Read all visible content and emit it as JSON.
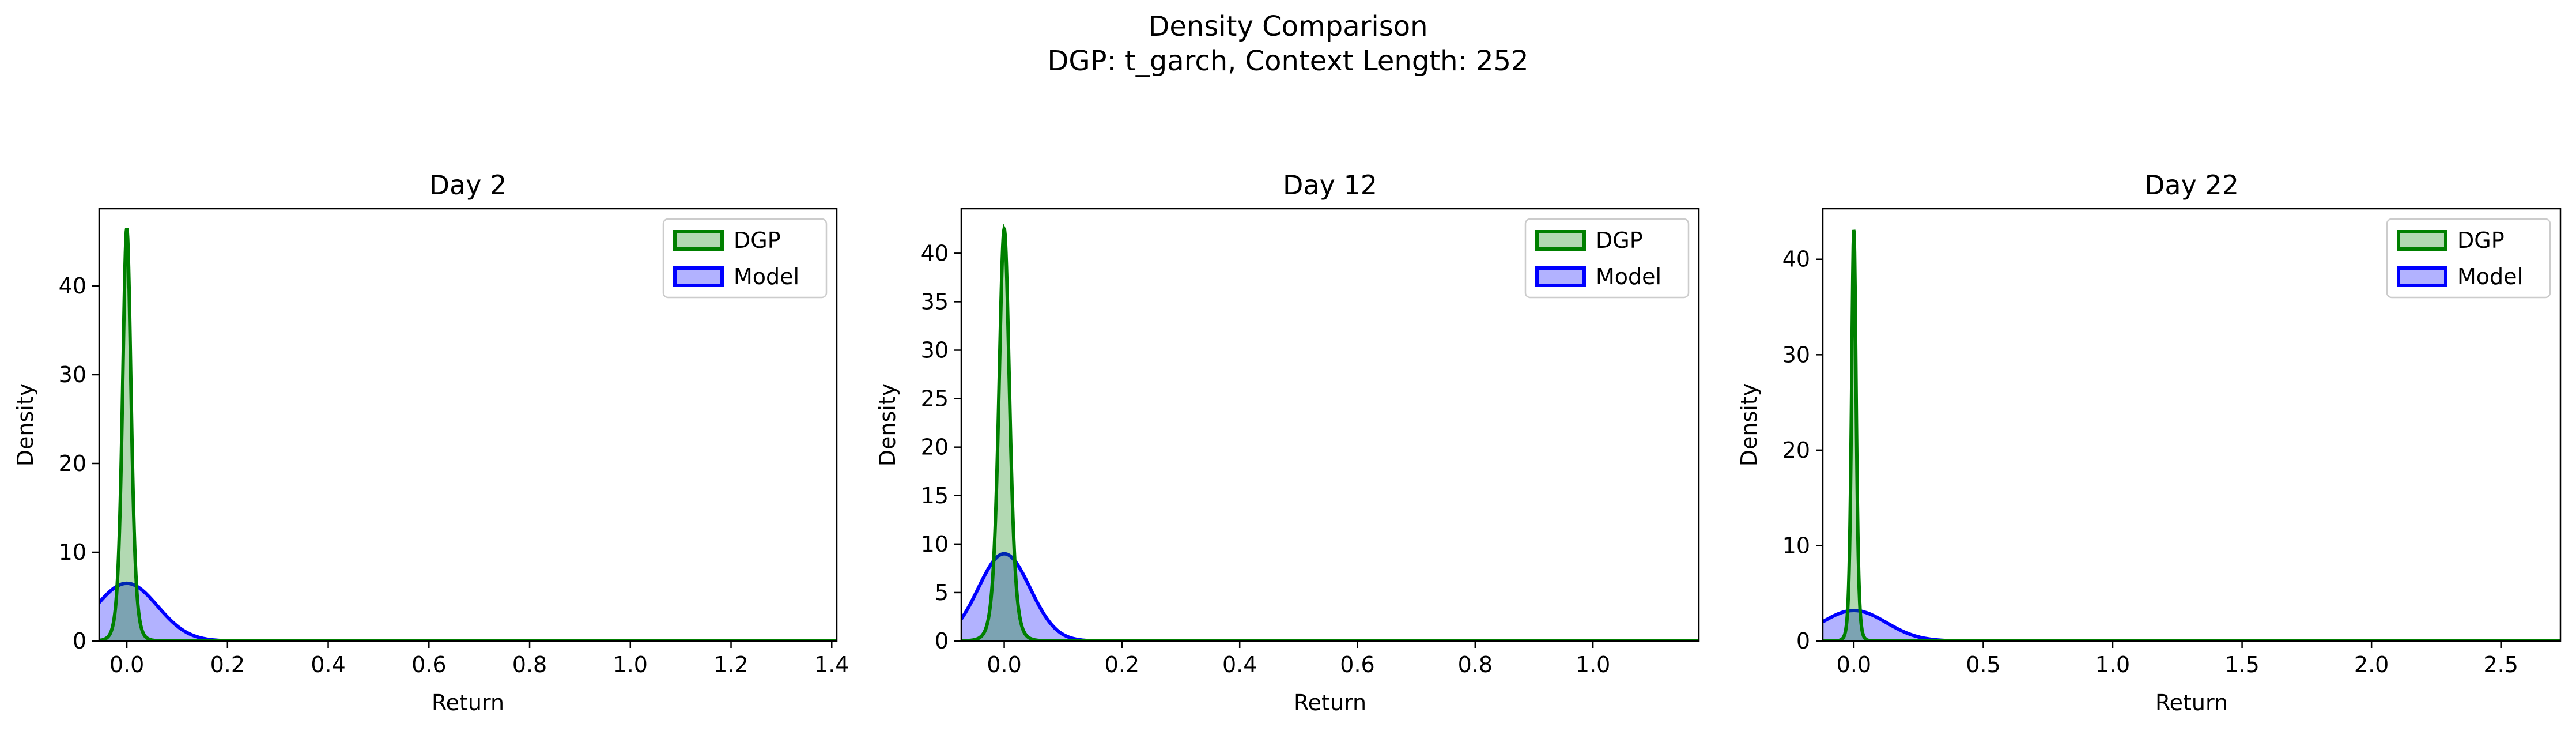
{
  "figure": {
    "title_line1": "Density Comparison",
    "title_line2": "DGP: t_garch, Context Length: 252"
  },
  "colors": {
    "dgp_line": "#008000",
    "dgp_fill": "#008000",
    "model_line": "#0000ff",
    "model_fill": "#0000ff",
    "axis": "#000000"
  },
  "chart_data": [
    {
      "type": "area",
      "title": "Day 2",
      "xlabel": "Return",
      "ylabel": "Density",
      "xlim": [
        -0.055,
        1.41
      ],
      "ylim": [
        0,
        48.7
      ],
      "xticks": [
        0.0,
        0.2,
        0.4,
        0.6,
        0.8,
        1.0,
        1.2,
        1.4
      ],
      "xtick_labels": [
        "0.0",
        "0.2",
        "0.4",
        "0.6",
        "0.8",
        "1.0",
        "1.2",
        "1.4"
      ],
      "yticks": [
        0,
        10,
        20,
        30,
        40
      ],
      "ytick_labels": [
        "0",
        "10",
        "20",
        "30",
        "40"
      ],
      "grid": false,
      "legend": "upper right",
      "series": [
        {
          "name": "DGP",
          "peak_x": 0.0,
          "peak_density": 46.5
        },
        {
          "name": "Model",
          "peak_x": 0.0,
          "peak_density": 6.5
        }
      ]
    },
    {
      "type": "area",
      "title": "Day 12",
      "xlabel": "Return",
      "ylabel": "Density",
      "xlim": [
        -0.073,
        1.18
      ],
      "ylim": [
        0,
        44.6
      ],
      "xticks": [
        0.0,
        0.2,
        0.4,
        0.6,
        0.8,
        1.0
      ],
      "xtick_labels": [
        "0.0",
        "0.2",
        "0.4",
        "0.6",
        "0.8",
        "1.0"
      ],
      "yticks": [
        0,
        5,
        10,
        15,
        20,
        25,
        30,
        35,
        40
      ],
      "ytick_labels": [
        "0",
        "5",
        "10",
        "15",
        "20",
        "25",
        "30",
        "35",
        "40"
      ],
      "grid": false,
      "legend": "upper right",
      "series": [
        {
          "name": "DGP",
          "peak_x": 0.0,
          "peak_density": 42.5
        },
        {
          "name": "Model",
          "peak_x": 0.0,
          "peak_density": 9.0
        }
      ]
    },
    {
      "type": "area",
      "title": "Day 22",
      "xlabel": "Return",
      "ylabel": "Density",
      "xlim": [
        -0.12,
        2.73
      ],
      "ylim": [
        0,
        45.3
      ],
      "xticks": [
        0.0,
        0.5,
        1.0,
        1.5,
        2.0,
        2.5
      ],
      "xtick_labels": [
        "0.0",
        "0.5",
        "1.0",
        "1.5",
        "2.0",
        "2.5"
      ],
      "yticks": [
        0,
        10,
        20,
        30,
        40
      ],
      "ytick_labels": [
        "0",
        "10",
        "20",
        "30",
        "40"
      ],
      "grid": false,
      "legend": "upper right",
      "series": [
        {
          "name": "DGP",
          "peak_x": 0.0,
          "peak_density": 43.2
        },
        {
          "name": "Model",
          "peak_x": 0.0,
          "peak_density": 3.2
        }
      ]
    }
  ]
}
